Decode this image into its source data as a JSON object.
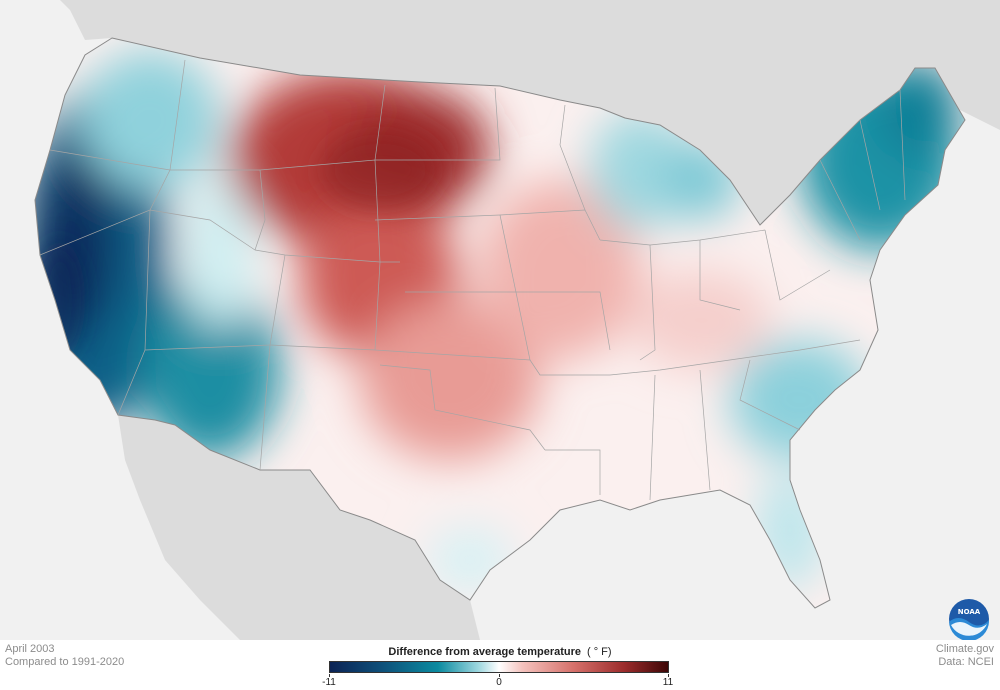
{
  "map": {
    "period": "April 2003",
    "baseline": "Compared to 1991-2020",
    "credit": "Climate.gov",
    "source": "Data: NCEI",
    "logo_text": "NOAA"
  },
  "legend": {
    "title": "Difference from average temperature",
    "unit": "( ° F)",
    "min_label": "-11",
    "mid_label": "0",
    "max_label": "11",
    "scale": {
      "min": -11,
      "max": 11
    },
    "colors": {
      "cold_extreme": "#0b2355",
      "cold": "#0c8ba0",
      "neutral": "#ffffff",
      "warm": "#d6716b",
      "warm_extreme": "#3d0707"
    }
  },
  "colors": {
    "background": "#f1f1f1",
    "land_outside": "#dcdcdc",
    "state_borders": "#9a9a9a"
  }
}
